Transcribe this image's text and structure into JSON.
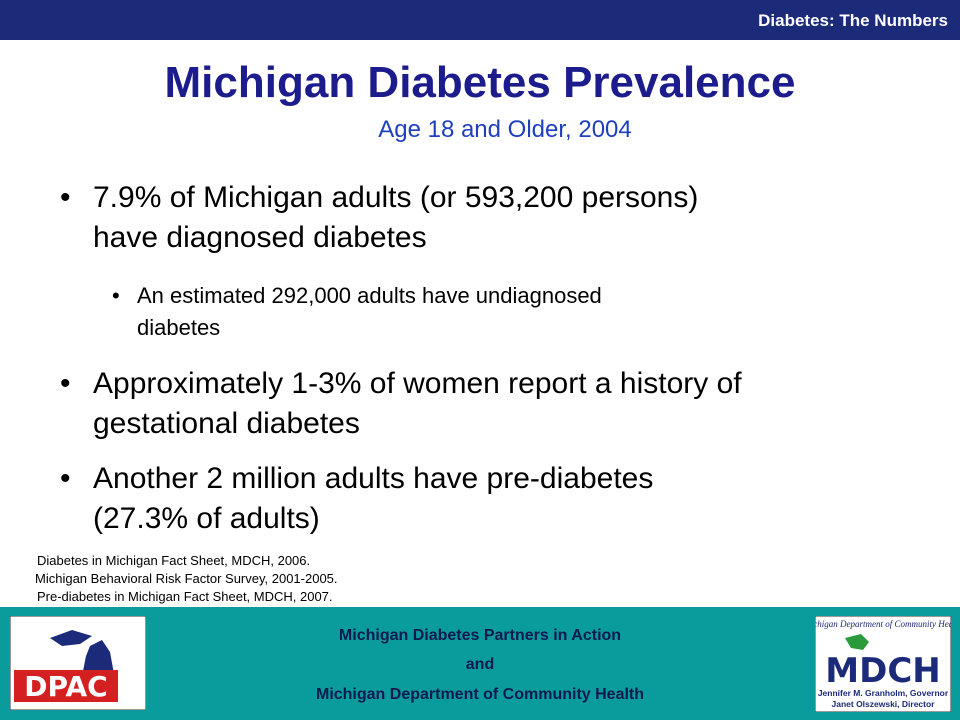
{
  "header": {
    "label": "Diabetes: The Numbers"
  },
  "title": "Michigan Diabetes Prevalence",
  "subtitle": "Age 18 and Older, 2004",
  "bullets": [
    {
      "lines": [
        "7.9% of Michigan adults (or 593,200 persons)",
        "have diagnosed diabetes"
      ]
    },
    {
      "lines": [
        "An estimated 292,000 adults have undiagnosed",
        "diabetes"
      ]
    },
    {
      "lines": [
        "Approximately 1-3% of women report a history of",
        "gestational diabetes"
      ]
    },
    {
      "lines": [
        "Another 2 million adults have pre-diabetes",
        "(27.3% of adults)"
      ]
    }
  ],
  "sources": [
    "Diabetes in Michigan Fact Sheet, MDCH, 2006.",
    "Michigan Behavioral Risk Factor Survey, 2001-2005.",
    "Pre-diabetes in Michigan Fact Sheet, MDCH, 2007."
  ],
  "footer": {
    "lines": [
      "Michigan Diabetes Partners in Action",
      "and",
      "Michigan Department of Community Health"
    ]
  },
  "left_logo": {
    "text": "DPAC"
  },
  "right_logo": {
    "heading": "Michigan Department of Community Health",
    "text": "MDCH",
    "lines": [
      "Jennifer M. Granholm, Governor",
      "Janet Olszewski, Director"
    ]
  }
}
